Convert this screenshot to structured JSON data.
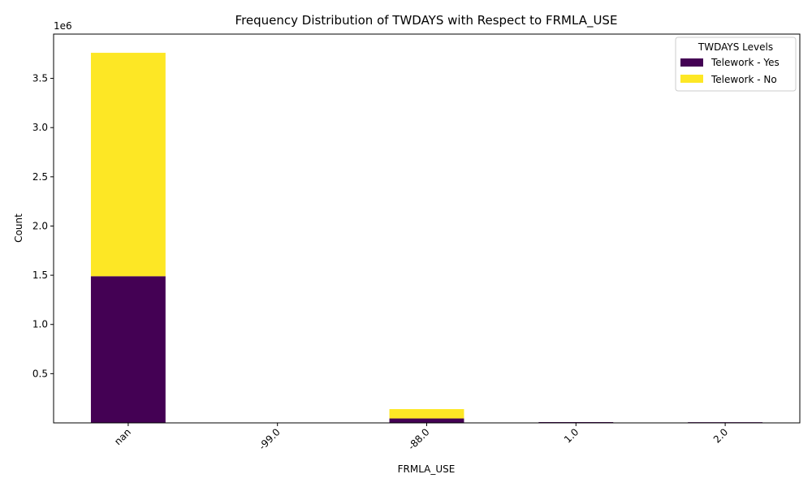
{
  "chart_data": {
    "type": "bar",
    "stacked": true,
    "title": "Frequency Distribution of TWDAYS with Respect to FRMLA_USE",
    "xlabel": "FRMLA_USE",
    "ylabel": "Count",
    "y_multiplier_label": "1e6",
    "categories": [
      "nan",
      "-99.0",
      "-88.0",
      "1.0",
      "2.0"
    ],
    "series": [
      {
        "name": "Telework - Yes",
        "color": "#440154",
        "values": [
          1490000,
          0,
          45000,
          8000,
          7000
        ]
      },
      {
        "name": "Telework - No",
        "color": "#fde725",
        "values": [
          2270000,
          0,
          95000,
          0,
          0
        ]
      }
    ],
    "ylim": [
      0,
      3950000
    ],
    "y_ticks": [
      500000,
      1000000,
      1500000,
      2000000,
      2500000,
      3000000,
      3500000
    ],
    "y_tick_labels": [
      "0.5",
      "1.0",
      "1.5",
      "2.0",
      "2.5",
      "3.0",
      "3.5"
    ],
    "legend": {
      "title": "TWDAYS Levels",
      "position": "top-right"
    }
  }
}
